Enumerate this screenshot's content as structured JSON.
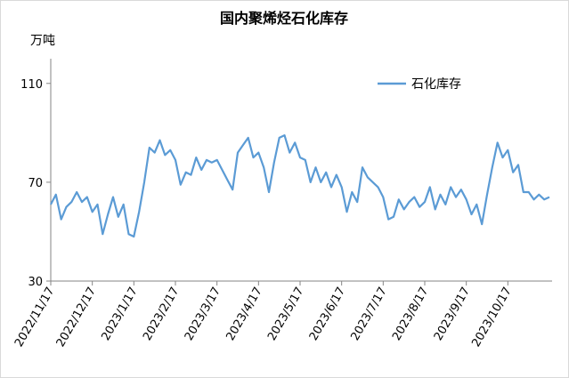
{
  "chart_data": {
    "type": "line",
    "title": "国内聚烯烃石化库存",
    "y_label": "万吨",
    "categories": [
      "2022/11/17",
      null,
      null,
      null,
      null,
      null,
      null,
      null,
      "2022/12/17",
      null,
      null,
      null,
      null,
      null,
      null,
      null,
      "2023/1/17",
      null,
      null,
      null,
      null,
      null,
      null,
      null,
      "2023/2/17",
      null,
      null,
      null,
      null,
      null,
      null,
      null,
      "2023/3/17",
      null,
      null,
      null,
      null,
      null,
      null,
      null,
      "2023/4/17",
      null,
      null,
      null,
      null,
      null,
      null,
      null,
      "2023/5/17",
      null,
      null,
      null,
      null,
      null,
      null,
      null,
      "2023/6/17",
      null,
      null,
      null,
      null,
      null,
      null,
      null,
      "2023/7/17",
      null,
      null,
      null,
      null,
      null,
      null,
      null,
      "2023/8/17",
      null,
      null,
      null,
      null,
      null,
      null,
      null,
      "2023/9/17",
      null,
      null,
      null,
      null,
      null,
      null,
      null,
      "2023/10/17",
      null,
      null,
      null,
      null,
      null,
      null,
      null,
      null
    ],
    "series": [
      {
        "name": "石化库存",
        "color": "#5b9bd5",
        "values": [
          61,
          65,
          55,
          60,
          62,
          66,
          62,
          64,
          58,
          61,
          49,
          57,
          64,
          56,
          61,
          49,
          48,
          58,
          70,
          84,
          82,
          87,
          81,
          83,
          79,
          69,
          74,
          73,
          80,
          75,
          79,
          78,
          79,
          75,
          71,
          67,
          82,
          85,
          88,
          80,
          82,
          76,
          66,
          78,
          88,
          89,
          82,
          86,
          80,
          79,
          70,
          76,
          70,
          74,
          68,
          73,
          68,
          58,
          66,
          62,
          76,
          72,
          70,
          68,
          64,
          55,
          56,
          63,
          59,
          62,
          64,
          60,
          62,
          68,
          59,
          65,
          61,
          68,
          64,
          67,
          63,
          57,
          61,
          53,
          65,
          76,
          86,
          80,
          83,
          74,
          77,
          66,
          66,
          63,
          65,
          63,
          64
        ]
      }
    ],
    "ylim": [
      30,
      120
    ],
    "yticks": [
      30,
      70,
      110
    ],
    "grid": false,
    "legend": "top-right"
  }
}
